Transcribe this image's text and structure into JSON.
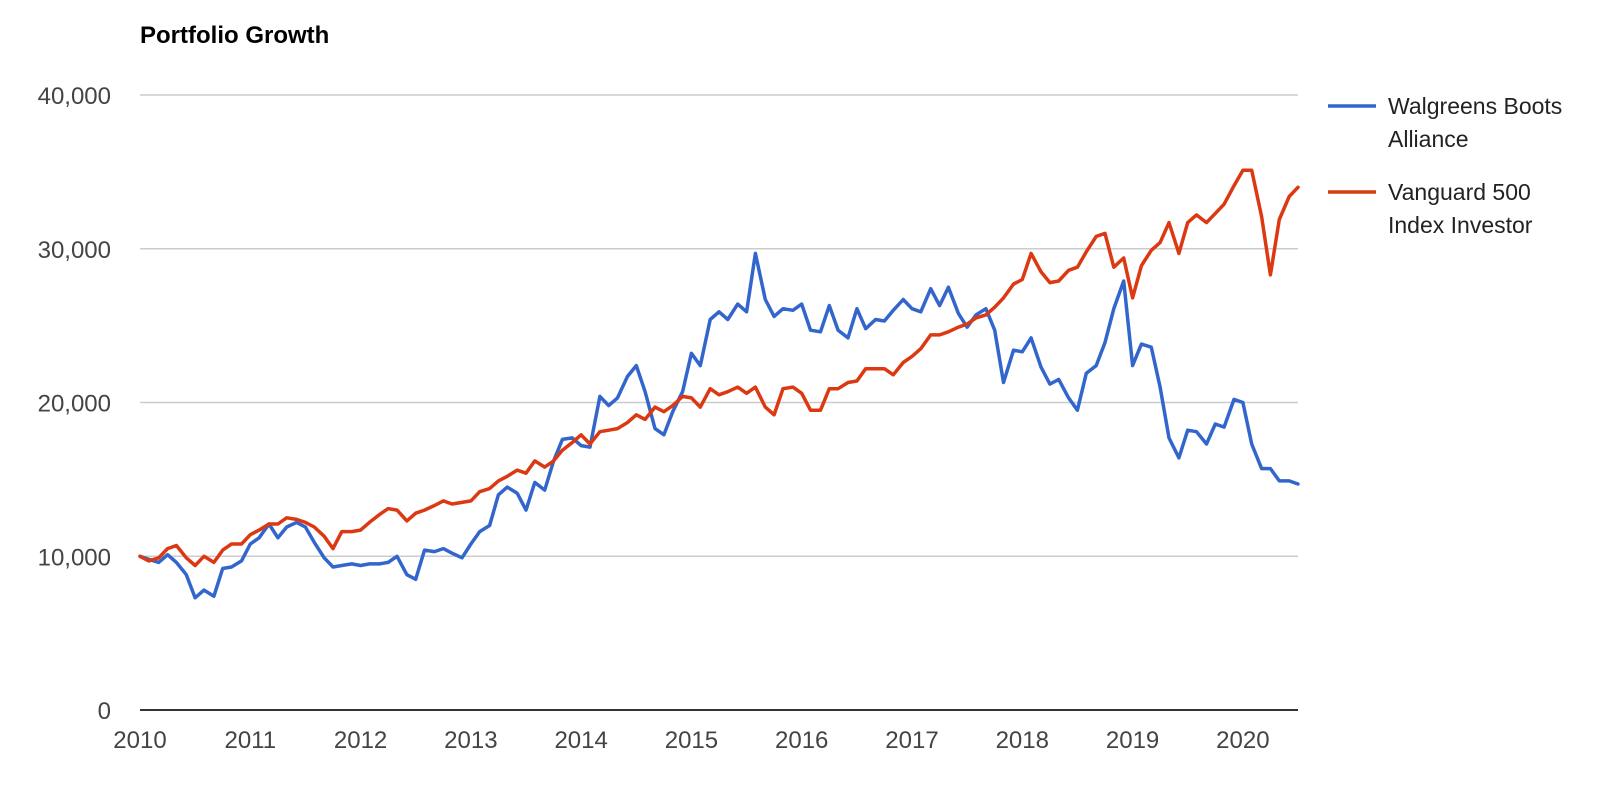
{
  "chart_data": {
    "type": "line",
    "title": "Portfolio Growth",
    "xlabel": "",
    "ylabel": "",
    "xlim": [
      2010,
      2020.5
    ],
    "ylim": [
      0,
      40000
    ],
    "x_ticks": [
      "2010",
      "2011",
      "2012",
      "2013",
      "2014",
      "2015",
      "2016",
      "2017",
      "2018",
      "2019",
      "2020"
    ],
    "y_ticks": [
      "0",
      "10,000",
      "20,000",
      "30,000",
      "40,000"
    ],
    "y_tick_values": [
      0,
      10000,
      20000,
      30000,
      40000
    ],
    "grid": true,
    "legend_position": "right",
    "series": [
      {
        "name": "Walgreens Boots Alliance",
        "color": "#3366cc",
        "points": [
          [
            2010.0,
            10000
          ],
          [
            2010.08,
            9800
          ],
          [
            2010.17,
            9600
          ],
          [
            2010.25,
            10100
          ],
          [
            2010.33,
            9600
          ],
          [
            2010.42,
            8800
          ],
          [
            2010.5,
            7300
          ],
          [
            2010.58,
            7800
          ],
          [
            2010.67,
            7400
          ],
          [
            2010.75,
            9200
          ],
          [
            2010.83,
            9300
          ],
          [
            2010.92,
            9700
          ],
          [
            2011.0,
            10800
          ],
          [
            2011.08,
            11200
          ],
          [
            2011.17,
            12100
          ],
          [
            2011.25,
            11200
          ],
          [
            2011.33,
            11900
          ],
          [
            2011.42,
            12200
          ],
          [
            2011.5,
            11900
          ],
          [
            2011.58,
            10900
          ],
          [
            2011.67,
            9900
          ],
          [
            2011.75,
            9300
          ],
          [
            2011.83,
            9400
          ],
          [
            2011.92,
            9500
          ],
          [
            2012.0,
            9400
          ],
          [
            2012.08,
            9500
          ],
          [
            2012.17,
            9500
          ],
          [
            2012.25,
            9600
          ],
          [
            2012.33,
            10000
          ],
          [
            2012.42,
            8800
          ],
          [
            2012.5,
            8500
          ],
          [
            2012.58,
            10400
          ],
          [
            2012.67,
            10300
          ],
          [
            2012.75,
            10500
          ],
          [
            2012.83,
            10200
          ],
          [
            2012.92,
            9900
          ],
          [
            2013.0,
            10800
          ],
          [
            2013.08,
            11600
          ],
          [
            2013.17,
            12000
          ],
          [
            2013.25,
            14000
          ],
          [
            2013.33,
            14500
          ],
          [
            2013.42,
            14100
          ],
          [
            2013.5,
            13000
          ],
          [
            2013.58,
            14800
          ],
          [
            2013.67,
            14300
          ],
          [
            2013.75,
            16200
          ],
          [
            2013.83,
            17600
          ],
          [
            2013.92,
            17700
          ],
          [
            2014.0,
            17200
          ],
          [
            2014.08,
            17100
          ],
          [
            2014.17,
            20400
          ],
          [
            2014.25,
            19800
          ],
          [
            2014.33,
            20300
          ],
          [
            2014.42,
            21700
          ],
          [
            2014.5,
            22400
          ],
          [
            2014.58,
            20700
          ],
          [
            2014.67,
            18300
          ],
          [
            2014.75,
            17900
          ],
          [
            2014.83,
            19400
          ],
          [
            2014.92,
            20700
          ],
          [
            2015.0,
            23200
          ],
          [
            2015.08,
            22400
          ],
          [
            2015.17,
            25400
          ],
          [
            2015.25,
            25900
          ],
          [
            2015.33,
            25400
          ],
          [
            2015.42,
            26400
          ],
          [
            2015.5,
            25900
          ],
          [
            2015.58,
            29700
          ],
          [
            2015.67,
            26700
          ],
          [
            2015.75,
            25600
          ],
          [
            2015.83,
            26100
          ],
          [
            2015.92,
            26000
          ],
          [
            2016.0,
            26400
          ],
          [
            2016.08,
            24700
          ],
          [
            2016.17,
            24600
          ],
          [
            2016.25,
            26300
          ],
          [
            2016.33,
            24700
          ],
          [
            2016.42,
            24200
          ],
          [
            2016.5,
            26100
          ],
          [
            2016.58,
            24800
          ],
          [
            2016.67,
            25400
          ],
          [
            2016.75,
            25300
          ],
          [
            2016.83,
            26000
          ],
          [
            2016.92,
            26700
          ],
          [
            2017.0,
            26100
          ],
          [
            2017.08,
            25900
          ],
          [
            2017.17,
            27400
          ],
          [
            2017.25,
            26300
          ],
          [
            2017.33,
            27500
          ],
          [
            2017.42,
            25800
          ],
          [
            2017.5,
            24900
          ],
          [
            2017.58,
            25700
          ],
          [
            2017.67,
            26100
          ],
          [
            2017.75,
            24700
          ],
          [
            2017.83,
            21300
          ],
          [
            2017.92,
            23400
          ],
          [
            2018.0,
            23300
          ],
          [
            2018.08,
            24200
          ],
          [
            2018.17,
            22300
          ],
          [
            2018.25,
            21200
          ],
          [
            2018.33,
            21500
          ],
          [
            2018.42,
            20300
          ],
          [
            2018.5,
            19500
          ],
          [
            2018.58,
            21900
          ],
          [
            2018.67,
            22400
          ],
          [
            2018.75,
            23900
          ],
          [
            2018.83,
            26100
          ],
          [
            2018.92,
            27900
          ],
          [
            2019.0,
            22400
          ],
          [
            2019.08,
            23800
          ],
          [
            2019.17,
            23600
          ],
          [
            2019.25,
            21000
          ],
          [
            2019.33,
            17700
          ],
          [
            2019.42,
            16400
          ],
          [
            2019.5,
            18200
          ],
          [
            2019.58,
            18100
          ],
          [
            2019.67,
            17300
          ],
          [
            2019.75,
            18600
          ],
          [
            2019.83,
            18400
          ],
          [
            2019.92,
            20200
          ],
          [
            2020.0,
            20000
          ],
          [
            2020.08,
            17300
          ],
          [
            2020.17,
            15700
          ],
          [
            2020.25,
            15700
          ],
          [
            2020.33,
            14900
          ],
          [
            2020.42,
            14900
          ],
          [
            2020.5,
            14700
          ]
        ]
      },
      {
        "name": "Vanguard 500 Index Investor",
        "color": "#dc3912",
        "points": [
          [
            2010.0,
            10000
          ],
          [
            2010.08,
            9700
          ],
          [
            2010.17,
            9900
          ],
          [
            2010.25,
            10500
          ],
          [
            2010.33,
            10700
          ],
          [
            2010.42,
            9900
          ],
          [
            2010.5,
            9400
          ],
          [
            2010.58,
            10000
          ],
          [
            2010.67,
            9600
          ],
          [
            2010.75,
            10400
          ],
          [
            2010.83,
            10800
          ],
          [
            2010.92,
            10800
          ],
          [
            2011.0,
            11400
          ],
          [
            2011.08,
            11700
          ],
          [
            2011.17,
            12100
          ],
          [
            2011.25,
            12100
          ],
          [
            2011.33,
            12500
          ],
          [
            2011.42,
            12400
          ],
          [
            2011.5,
            12200
          ],
          [
            2011.58,
            11900
          ],
          [
            2011.67,
            11300
          ],
          [
            2011.75,
            10500
          ],
          [
            2011.83,
            11600
          ],
          [
            2011.92,
            11600
          ],
          [
            2012.0,
            11700
          ],
          [
            2012.08,
            12200
          ],
          [
            2012.17,
            12700
          ],
          [
            2012.25,
            13100
          ],
          [
            2012.33,
            13000
          ],
          [
            2012.42,
            12300
          ],
          [
            2012.5,
            12800
          ],
          [
            2012.58,
            13000
          ],
          [
            2012.67,
            13300
          ],
          [
            2012.75,
            13600
          ],
          [
            2012.83,
            13400
          ],
          [
            2012.92,
            13500
          ],
          [
            2013.0,
            13600
          ],
          [
            2013.08,
            14200
          ],
          [
            2013.17,
            14400
          ],
          [
            2013.25,
            14900
          ],
          [
            2013.33,
            15200
          ],
          [
            2013.42,
            15600
          ],
          [
            2013.5,
            15400
          ],
          [
            2013.58,
            16200
          ],
          [
            2013.67,
            15800
          ],
          [
            2013.75,
            16200
          ],
          [
            2013.83,
            16900
          ],
          [
            2013.92,
            17400
          ],
          [
            2014.0,
            17900
          ],
          [
            2014.08,
            17300
          ],
          [
            2014.17,
            18100
          ],
          [
            2014.25,
            18200
          ],
          [
            2014.33,
            18300
          ],
          [
            2014.42,
            18700
          ],
          [
            2014.5,
            19200
          ],
          [
            2014.58,
            18900
          ],
          [
            2014.67,
            19700
          ],
          [
            2014.75,
            19400
          ],
          [
            2014.83,
            19800
          ],
          [
            2014.92,
            20400
          ],
          [
            2015.0,
            20300
          ],
          [
            2015.08,
            19700
          ],
          [
            2015.17,
            20900
          ],
          [
            2015.25,
            20500
          ],
          [
            2015.33,
            20700
          ],
          [
            2015.42,
            21000
          ],
          [
            2015.5,
            20600
          ],
          [
            2015.58,
            21000
          ],
          [
            2015.67,
            19700
          ],
          [
            2015.75,
            19200
          ],
          [
            2015.83,
            20900
          ],
          [
            2015.92,
            21000
          ],
          [
            2016.0,
            20600
          ],
          [
            2016.08,
            19500
          ],
          [
            2016.17,
            19500
          ],
          [
            2016.25,
            20900
          ],
          [
            2016.33,
            20900
          ],
          [
            2016.42,
            21300
          ],
          [
            2016.5,
            21400
          ],
          [
            2016.58,
            22200
          ],
          [
            2016.67,
            22200
          ],
          [
            2016.75,
            22200
          ],
          [
            2016.83,
            21800
          ],
          [
            2016.92,
            22600
          ],
          [
            2017.0,
            23000
          ],
          [
            2017.08,
            23500
          ],
          [
            2017.17,
            24400
          ],
          [
            2017.25,
            24400
          ],
          [
            2017.33,
            24600
          ],
          [
            2017.42,
            24900
          ],
          [
            2017.5,
            25100
          ],
          [
            2017.58,
            25500
          ],
          [
            2017.67,
            25700
          ],
          [
            2017.75,
            26200
          ],
          [
            2017.83,
            26800
          ],
          [
            2017.92,
            27700
          ],
          [
            2018.0,
            28000
          ],
          [
            2018.08,
            29700
          ],
          [
            2018.17,
            28500
          ],
          [
            2018.25,
            27800
          ],
          [
            2018.33,
            27900
          ],
          [
            2018.42,
            28600
          ],
          [
            2018.5,
            28800
          ],
          [
            2018.58,
            29800
          ],
          [
            2018.67,
            30800
          ],
          [
            2018.75,
            31000
          ],
          [
            2018.83,
            28800
          ],
          [
            2018.92,
            29400
          ],
          [
            2019.0,
            26800
          ],
          [
            2019.08,
            28900
          ],
          [
            2019.17,
            29900
          ],
          [
            2019.25,
            30400
          ],
          [
            2019.33,
            31700
          ],
          [
            2019.42,
            29700
          ],
          [
            2019.5,
            31700
          ],
          [
            2019.58,
            32200
          ],
          [
            2019.67,
            31700
          ],
          [
            2019.75,
            32300
          ],
          [
            2019.83,
            32900
          ],
          [
            2019.92,
            34100
          ],
          [
            2020.0,
            35100
          ],
          [
            2020.08,
            35100
          ],
          [
            2020.17,
            32100
          ],
          [
            2020.25,
            28300
          ],
          [
            2020.33,
            31900
          ],
          [
            2020.42,
            33400
          ],
          [
            2020.5,
            34000
          ]
        ]
      }
    ]
  }
}
